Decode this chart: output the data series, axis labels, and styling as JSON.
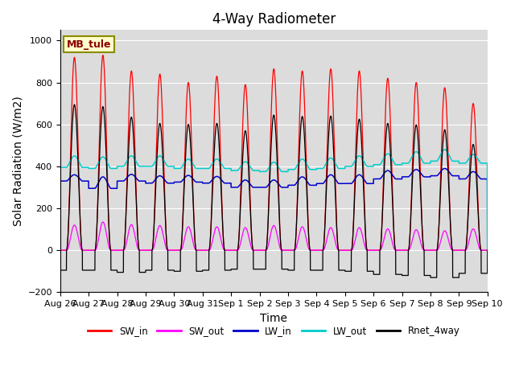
{
  "title": "4-Way Radiometer",
  "xlabel": "Time",
  "ylabel": "Solar Radiation (W/m2)",
  "ylim": [
    -200,
    1050
  ],
  "yticks": [
    -200,
    0,
    200,
    400,
    600,
    800,
    1000
  ],
  "label_box": "MB_tule",
  "xtick_labels": [
    "Aug 26",
    "Aug 27",
    "Aug 28",
    "Aug 29",
    "Aug 30",
    "Aug 31",
    "Sep 1",
    "Sep 2",
    "Sep 3",
    "Sep 4",
    "Sep 5",
    "Sep 6",
    "Sep 7",
    "Sep 8",
    "Sep 9",
    "Sep 10"
  ],
  "colors": {
    "SW_in": "#FF0000",
    "SW_out": "#FF00FF",
    "LW_in": "#0000CC",
    "LW_out": "#00CCCC",
    "Rnet_4way": "#000000"
  },
  "bg_color": "#DCDCDC",
  "title_fontsize": 12,
  "axis_fontsize": 10,
  "tick_fontsize": 8,
  "n_days": 15,
  "pts_per_day": 288,
  "day_start": 0.22,
  "day_end": 0.78,
  "SW_in_peaks": [
    920,
    930,
    855,
    840,
    800,
    830,
    790,
    865,
    855,
    865,
    855,
    820,
    800,
    775,
    700
  ],
  "SW_out_peaks": [
    120,
    135,
    122,
    118,
    112,
    112,
    108,
    118,
    112,
    108,
    108,
    102,
    98,
    93,
    102
  ],
  "LW_in_base": [
    330,
    295,
    330,
    320,
    325,
    320,
    300,
    300,
    310,
    318,
    318,
    340,
    350,
    355,
    340
  ],
  "LW_in_day_bump": [
    30,
    55,
    32,
    35,
    32,
    32,
    35,
    35,
    40,
    42,
    42,
    40,
    35,
    35,
    35
  ],
  "LW_out_base": [
    395,
    390,
    400,
    400,
    390,
    390,
    380,
    375,
    385,
    390,
    400,
    408,
    415,
    425,
    415
  ],
  "LW_out_day_bump": [
    55,
    55,
    50,
    50,
    45,
    45,
    42,
    45,
    50,
    50,
    50,
    52,
    55,
    55,
    42
  ],
  "Rnet_day_peaks": [
    695,
    685,
    635,
    605,
    600,
    605,
    570,
    645,
    638,
    640,
    625,
    605,
    598,
    575,
    505
  ],
  "Rnet_night_vals": [
    -95,
    -95,
    -105,
    -95,
    -100,
    -95,
    -90,
    -90,
    -95,
    -95,
    -100,
    -115,
    -120,
    -130,
    -110
  ]
}
